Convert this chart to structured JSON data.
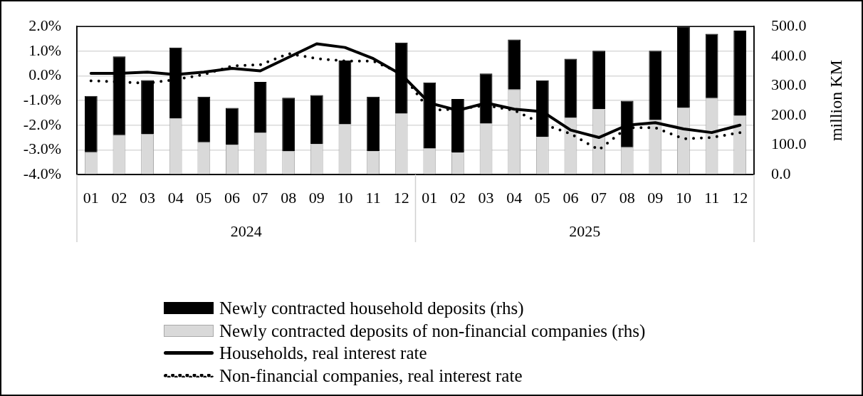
{
  "chart_data": {
    "type": "bar",
    "categories": [
      "01",
      "02",
      "03",
      "04",
      "05",
      "06",
      "07",
      "08",
      "09",
      "10",
      "11",
      "12",
      "01",
      "02",
      "03",
      "04",
      "05",
      "06",
      "07",
      "08",
      "09",
      "10",
      "11",
      "12"
    ],
    "annotations": [
      "2024",
      "2025"
    ],
    "series": [
      {
        "name": "Newly contracted deposits of non-financial companies (rhs)",
        "axis": "y2",
        "color": "#d9d9d9",
        "values": [
          75,
          133,
          137,
          189,
          109,
          100,
          142,
          78,
          103,
          171,
          79,
          207,
          89,
          74,
          173,
          287,
          127,
          191,
          221,
          92,
          185,
          225,
          258,
          200
        ]
      },
      {
        "name": "Newly contracted household deposits (rhs)",
        "axis": "y2",
        "color": "#000000",
        "values": [
          190,
          266,
          182,
          240,
          154,
          125,
          171,
          181,
          165,
          214,
          184,
          239,
          222,
          181,
          168,
          169,
          191,
          200,
          197,
          157,
          233,
          275,
          217,
          286
        ]
      },
      {
        "name": "Households, real interest rate",
        "type": "line",
        "color": "#000000",
        "line_style": "solid",
        "values": [
          0.1,
          0.1,
          0.15,
          0.05,
          0.15,
          0.3,
          0.2,
          0.75,
          1.3,
          1.15,
          0.7,
          0.05,
          -1.1,
          -1.4,
          -1.1,
          -1.35,
          -1.45,
          -2.2,
          -2.5,
          -2.0,
          -1.9,
          -2.15,
          -2.3,
          -2.0
        ]
      },
      {
        "name": "Non-financial companies, real interest rate",
        "type": "line",
        "color": "#000000",
        "line_style": "dotted",
        "values": [
          -0.2,
          -0.25,
          -0.3,
          -0.15,
          0.05,
          0.4,
          0.45,
          0.9,
          0.7,
          0.6,
          0.6,
          0.1,
          -1.4,
          -1.35,
          -1.2,
          -1.4,
          -1.95,
          -2.35,
          -3.0,
          -2.1,
          -2.1,
          -2.55,
          -2.5,
          -2.3
        ]
      }
    ],
    "stacked": true,
    "ylim": [
      -4,
      2
    ],
    "yticks": [
      {
        "value": -4,
        "label": "-4.0%"
      },
      {
        "value": -3,
        "label": "-3.0%"
      },
      {
        "value": -2,
        "label": "-2.0%"
      },
      {
        "value": -1,
        "label": "-1.0%"
      },
      {
        "value": 0,
        "label": "0.0%"
      },
      {
        "value": 1,
        "label": "1.0%"
      },
      {
        "value": 2,
        "label": "2.0%"
      }
    ],
    "y2lim": [
      0,
      500
    ],
    "y2ticks": [
      {
        "value": 0,
        "label": "0.0"
      },
      {
        "value": 100,
        "label": "100.0"
      },
      {
        "value": 200,
        "label": "200.0"
      },
      {
        "value": 300,
        "label": "300.0"
      },
      {
        "value": 400,
        "label": "400.0"
      },
      {
        "value": 500,
        "label": "500.0"
      }
    ],
    "y2label": "million KM",
    "grid": "y",
    "legend": "bottom",
    "marker": "none"
  }
}
